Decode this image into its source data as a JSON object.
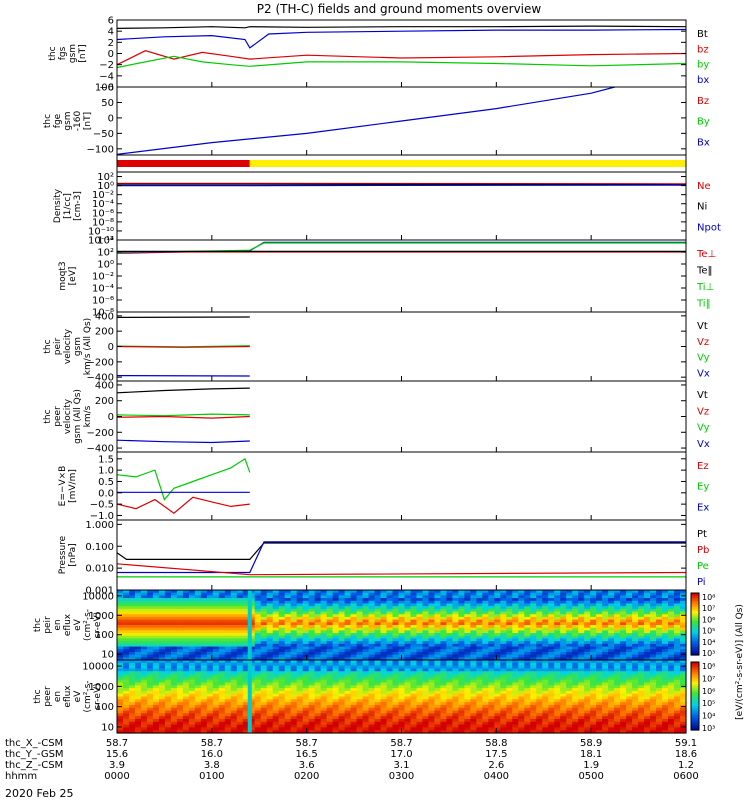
{
  "title": "P2 (TH-C) fields and ground moments overview",
  "date_label": "2020 Feb 25",
  "xaxis": {
    "rows": [
      {
        "label": "thc_X_-CSM",
        "values": [
          "58.7",
          "58.7",
          "58.7",
          "58.7",
          "58.8",
          "58.9",
          "59.1"
        ]
      },
      {
        "label": "thc_Y_-GSM",
        "values": [
          "15.6",
          "16.0",
          "16.5",
          "17.0",
          "17.5",
          "18.1",
          "18.6"
        ]
      },
      {
        "label": "thc_Z_-CSM",
        "values": [
          "3.9",
          "3.8",
          "3.6",
          "3.1",
          "2.6",
          "1.9",
          "1.2"
        ]
      },
      {
        "label": "hhmm",
        "values": [
          "0000",
          "0100",
          "0200",
          "0300",
          "0400",
          "0500",
          "0600"
        ]
      }
    ]
  },
  "colorbar": {
    "label": "[eV/(cm²-s-sr-eV)] (All Qs)",
    "ticks_top": [
      "10⁸",
      "10⁷",
      "10⁶",
      "10⁵",
      "10⁴",
      "10³"
    ],
    "ticks_bottom": [
      "10⁸",
      "10⁷",
      "10⁶",
      "10⁵",
      "10⁴",
      "10³"
    ]
  },
  "colors": {
    "black": "#000000",
    "red": "#dd0000",
    "green": "#00cc00",
    "blue": "#0000cc",
    "yellow": "#ffee00"
  },
  "chart_data": [
    {
      "type": "line",
      "ylabel_lines": [
        "thc",
        "fgs",
        "gsm",
        "[nT]"
      ],
      "ylim": [
        -6,
        6
      ],
      "yticks": [
        {
          "v": 6,
          "t": "6"
        },
        {
          "v": 4,
          "t": "4"
        },
        {
          "v": 2,
          "t": "2"
        },
        {
          "v": 0,
          "t": "0"
        },
        {
          "v": -2,
          "t": "−2"
        },
        {
          "v": -4,
          "t": "−4"
        },
        {
          "v": -6,
          "t": "−6"
        }
      ],
      "legend": [
        {
          "t": "Bt",
          "c": "black"
        },
        {
          "t": "bz",
          "c": "red"
        },
        {
          "t": "by",
          "c": "green"
        },
        {
          "t": "bx",
          "c": "blue"
        }
      ],
      "series": [
        {
          "c": "black",
          "x": [
            0,
            0.5,
            1,
            1.35,
            1.4,
            2,
            3,
            4,
            5,
            6
          ],
          "y": [
            4.5,
            4.6,
            4.8,
            4.6,
            4.8,
            4.7,
            4.8,
            4.8,
            4.9,
            4.8
          ]
        },
        {
          "c": "blue",
          "x": [
            0,
            0.5,
            1,
            1.35,
            1.4,
            1.6,
            2,
            3,
            4,
            5,
            6
          ],
          "y": [
            2.5,
            3.0,
            3.2,
            2.5,
            1,
            3.5,
            3.8,
            4.0,
            4.2,
            4.2,
            4.3
          ]
        },
        {
          "c": "red",
          "x": [
            0,
            0.3,
            0.6,
            0.9,
            1.2,
            1.4,
            2,
            3,
            4,
            5,
            6
          ],
          "y": [
            -2,
            0.5,
            -1,
            0.2,
            -0.5,
            -1,
            -0.3,
            -0.8,
            -0.6,
            -0.2,
            0
          ]
        },
        {
          "c": "green",
          "x": [
            0,
            0.3,
            0.6,
            0.9,
            1.2,
            1.4,
            2,
            3,
            4,
            5,
            6
          ],
          "y": [
            -2.5,
            -1.5,
            -0.5,
            -1.5,
            -2,
            -2.3,
            -1.5,
            -1.5,
            -1.8,
            -2.2,
            -1.8
          ]
        }
      ]
    },
    {
      "type": "line",
      "ylabel_lines": [
        "thc",
        "fge",
        "gsm",
        "-160",
        "[nT]"
      ],
      "ylim": [
        -120,
        100
      ],
      "yticks": [
        {
          "v": 100,
          "t": "100"
        },
        {
          "v": 50,
          "t": "50"
        },
        {
          "v": 0,
          "t": "0"
        },
        {
          "v": -50,
          "t": "−50"
        },
        {
          "v": -100,
          "t": "−100"
        }
      ],
      "legend": [
        {
          "t": "Bz",
          "c": "red"
        },
        {
          "t": "By",
          "c": "green"
        },
        {
          "t": "Bx",
          "c": "blue"
        }
      ],
      "series": [
        {
          "c": "blue",
          "x": [
            0,
            1,
            2,
            3,
            4,
            5,
            5.25
          ],
          "y": [
            -118,
            -80,
            -50,
            -10,
            30,
            80,
            100
          ]
        }
      ]
    },
    {
      "type": "bar",
      "bars": [
        {
          "x0": 0,
          "x1": 1.4,
          "c": "red"
        },
        {
          "x0": 1.4,
          "x1": 6,
          "c": "yellow"
        }
      ]
    },
    {
      "type": "line",
      "ylog": true,
      "ylabel_lines": [
        "Density",
        "[1/cc]",
        "[cm-3]"
      ],
      "ylim": [
        -12,
        3
      ],
      "yticks": [
        {
          "v": 2,
          "t": "10²"
        },
        {
          "v": 0,
          "t": "10⁰"
        },
        {
          "v": -2,
          "t": "10⁻²"
        },
        {
          "v": -4,
          "t": "10⁻⁴"
        },
        {
          "v": -6,
          "t": "10⁻⁶"
        },
        {
          "v": -8,
          "t": "10⁻⁸"
        },
        {
          "v": -10,
          "t": "10⁻¹⁰"
        },
        {
          "v": -12,
          "t": "10⁻¹²"
        }
      ],
      "legend": [
        {
          "t": "Ne",
          "c": "red"
        },
        {
          "t": "Ni",
          "c": "black"
        },
        {
          "t": "Npot",
          "c": "blue"
        }
      ],
      "series": [
        {
          "c": "red",
          "x": [
            0,
            1.4,
            6
          ],
          "y": [
            0.5,
            0.5,
            0.4
          ]
        },
        {
          "c": "black",
          "x": [
            0,
            1.4,
            6
          ],
          "y": [
            0.3,
            0.3,
            0.2
          ]
        },
        {
          "c": "blue",
          "x": [
            0,
            1.4,
            6
          ],
          "y": [
            0.0,
            0.0,
            0.1
          ]
        }
      ]
    },
    {
      "type": "line",
      "ylog": true,
      "ylabel_lines": [
        "moqt3",
        "[eV]"
      ],
      "ylim": [
        -8,
        4
      ],
      "yticks": [
        {
          "v": 4,
          "t": "10⁴"
        },
        {
          "v": 2,
          "t": "10²"
        },
        {
          "v": 0,
          "t": "10⁰"
        },
        {
          "v": -2,
          "t": "10⁻²"
        },
        {
          "v": -4,
          "t": "10⁻⁴"
        },
        {
          "v": -6,
          "t": "10⁻⁶"
        },
        {
          "v": -8,
          "t": "10⁻⁸"
        }
      ],
      "legend": [
        {
          "t": "Te⊥",
          "c": "red"
        },
        {
          "t": "Te‖",
          "c": "black"
        },
        {
          "t": "Ti⊥",
          "c": "green"
        },
        {
          "t": "Ti‖",
          "c": "green"
        }
      ],
      "series": [
        {
          "c": "blue",
          "x": [
            0,
            1.4,
            1.55,
            6
          ],
          "y": [
            1.8,
            2.2,
            3.6,
            3.6
          ]
        },
        {
          "c": "green",
          "x": [
            0,
            1.4,
            1.55,
            6
          ],
          "y": [
            1.9,
            2.3,
            3.5,
            3.5
          ]
        },
        {
          "c": "red",
          "x": [
            0,
            1.4,
            6
          ],
          "y": [
            2.0,
            2.0,
            2.0
          ]
        },
        {
          "c": "black",
          "x": [
            0,
            1.4,
            6
          ],
          "y": [
            2.1,
            2.1,
            2.1
          ]
        }
      ]
    },
    {
      "type": "line",
      "ylabel_lines": [
        "thc",
        "peir",
        "velocity",
        "gsm",
        "km/s (All Qs)"
      ],
      "ylim": [
        -450,
        450
      ],
      "yticks": [
        {
          "v": 400,
          "t": "400"
        },
        {
          "v": 200,
          "t": "200"
        },
        {
          "v": 0,
          "t": "0"
        },
        {
          "v": -200,
          "t": "−200"
        },
        {
          "v": -400,
          "t": "−400"
        }
      ],
      "legend": [
        {
          "t": "Vt",
          "c": "black"
        },
        {
          "t": "Vz",
          "c": "red"
        },
        {
          "t": "Vy",
          "c": "green"
        },
        {
          "t": "Vx",
          "c": "blue"
        }
      ],
      "series": [
        {
          "c": "black",
          "x": [
            0,
            1.4
          ],
          "y": [
            380,
            385
          ]
        },
        {
          "c": "green",
          "x": [
            0,
            0.7,
            1.4
          ],
          "y": [
            5,
            -5,
            10
          ]
        },
        {
          "c": "red",
          "x": [
            0,
            0.7,
            1.4
          ],
          "y": [
            0,
            -10,
            0
          ]
        },
        {
          "c": "blue",
          "x": [
            0,
            1.4
          ],
          "y": [
            -380,
            -385
          ]
        }
      ]
    },
    {
      "type": "line",
      "ylabel_lines": [
        "thc",
        "peer",
        "velocity",
        "gsm (All Qs)",
        "km/s"
      ],
      "ylim": [
        -450,
        450
      ],
      "yticks": [
        {
          "v": 400,
          "t": "400"
        },
        {
          "v": 200,
          "t": "200"
        },
        {
          "v": 0,
          "t": "0"
        },
        {
          "v": -200,
          "t": "−200"
        },
        {
          "v": -400,
          "t": "−400"
        }
      ],
      "legend": [
        {
          "t": "Vt",
          "c": "black"
        },
        {
          "t": "Vz",
          "c": "red"
        },
        {
          "t": "Vy",
          "c": "green"
        },
        {
          "t": "Vx",
          "c": "blue"
        }
      ],
      "series": [
        {
          "c": "black",
          "x": [
            0,
            0.5,
            1,
            1.4
          ],
          "y": [
            300,
            330,
            350,
            360
          ]
        },
        {
          "c": "green",
          "x": [
            0,
            0.5,
            1,
            1.4
          ],
          "y": [
            20,
            10,
            30,
            20
          ]
        },
        {
          "c": "red",
          "x": [
            0,
            0.5,
            1,
            1.4
          ],
          "y": [
            -10,
            0,
            -20,
            0
          ]
        },
        {
          "c": "blue",
          "x": [
            0,
            0.5,
            1,
            1.4
          ],
          "y": [
            -300,
            -320,
            -330,
            -310
          ]
        }
      ]
    },
    {
      "type": "line",
      "ylabel_lines": [
        "E=−V×B",
        "[mV/m]"
      ],
      "ylim": [
        -1.2,
        1.8
      ],
      "yticks": [
        {
          "v": 1.5,
          "t": "1.5"
        },
        {
          "v": 1.0,
          "t": "1.0"
        },
        {
          "v": 0.5,
          "t": "0.5"
        },
        {
          "v": 0.0,
          "t": "0.0"
        },
        {
          "v": -0.5,
          "t": "−0.5"
        },
        {
          "v": -1.0,
          "t": "−1.0"
        }
      ],
      "legend": [
        {
          "t": "Ez",
          "c": "red"
        },
        {
          "t": "Ey",
          "c": "green"
        },
        {
          "t": "Ex",
          "c": "blue"
        }
      ],
      "series": [
        {
          "c": "green",
          "x": [
            0,
            0.2,
            0.4,
            0.5,
            0.6,
            0.8,
            1.0,
            1.2,
            1.35,
            1.4
          ],
          "y": [
            0.8,
            0.7,
            1.0,
            -0.3,
            0.2,
            0.5,
            0.8,
            1.1,
            1.5,
            0.9
          ]
        },
        {
          "c": "red",
          "x": [
            0,
            0.2,
            0.4,
            0.6,
            0.8,
            1.0,
            1.2,
            1.4
          ],
          "y": [
            -0.5,
            -0.7,
            -0.3,
            -0.9,
            -0.2,
            -0.4,
            -0.6,
            -0.5
          ]
        },
        {
          "c": "blue",
          "x": [
            0,
            1.4
          ],
          "y": [
            0.02,
            0.02
          ]
        }
      ]
    },
    {
      "type": "line",
      "ylog": true,
      "ylabel_lines": [
        "Pressure",
        "[nPa]"
      ],
      "ylim": [
        -3,
        0.2
      ],
      "yticks": [
        {
          "v": 0,
          "t": "1.000"
        },
        {
          "v": -1,
          "t": "0.100"
        },
        {
          "v": -2,
          "t": "0.010"
        },
        {
          "v": -3,
          "t": "0.001"
        }
      ],
      "legend": [
        {
          "t": "Pt",
          "c": "black"
        },
        {
          "t": "Pb",
          "c": "red"
        },
        {
          "t": "Pe",
          "c": "green"
        },
        {
          "t": "Pi",
          "c": "blue"
        }
      ],
      "series": [
        {
          "c": "black",
          "x": [
            0,
            0.1,
            1.4,
            1.55,
            6
          ],
          "y": [
            -1.3,
            -1.6,
            -1.6,
            -0.85,
            -0.85
          ]
        },
        {
          "c": "blue",
          "x": [
            0,
            1.4,
            1.55,
            6
          ],
          "y": [
            -2.2,
            -2.2,
            -0.8,
            -0.8
          ]
        },
        {
          "c": "red",
          "x": [
            0,
            1.4,
            6
          ],
          "y": [
            -1.8,
            -2.3,
            -2.2
          ]
        },
        {
          "c": "green",
          "x": [
            0,
            1.4,
            6
          ],
          "y": [
            -2.4,
            -2.4,
            -2.4
          ]
        }
      ]
    },
    {
      "type": "heatmap",
      "ylabel_lines": [
        "thc",
        "peir",
        "en",
        "eflux",
        "eV",
        "(cm²-s-",
        "sr-eV)"
      ],
      "ylog": true,
      "ylim": [
        0.7,
        4.3
      ],
      "yticks": [
        {
          "v": 4,
          "t": "10000"
        },
        {
          "v": 3,
          "t": "1000"
        },
        {
          "v": 2,
          "t": "100"
        },
        {
          "v": 1,
          "t": "10"
        }
      ]
    },
    {
      "type": "heatmap",
      "ylabel_lines": [
        "thc",
        "peer",
        "en",
        "eflux",
        "eV",
        "(cm²-s-",
        "sr-eV)"
      ],
      "ylog": true,
      "ylim": [
        0.7,
        4.3
      ],
      "yticks": [
        {
          "v": 4,
          "t": "10000"
        },
        {
          "v": 3,
          "t": "1000"
        },
        {
          "v": 2,
          "t": "100"
        },
        {
          "v": 1,
          "t": "10"
        }
      ]
    }
  ]
}
